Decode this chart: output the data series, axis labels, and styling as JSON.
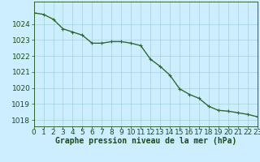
{
  "x": [
    0,
    1,
    2,
    3,
    4,
    5,
    6,
    7,
    8,
    9,
    10,
    11,
    12,
    13,
    14,
    15,
    16,
    17,
    18,
    19,
    20,
    21,
    22,
    23
  ],
  "y": [
    1024.7,
    1024.6,
    1024.3,
    1023.7,
    1023.5,
    1023.3,
    1022.8,
    1022.8,
    1022.9,
    1022.9,
    1022.8,
    1022.65,
    1021.8,
    1021.35,
    1020.8,
    1019.95,
    1019.6,
    1019.35,
    1018.85,
    1018.6,
    1018.55,
    1018.45,
    1018.35,
    1018.2
  ],
  "line_color": "#2d6a2d",
  "marker": "+",
  "marker_size": 3,
  "bg_color": "#cceeff",
  "grid_color": "#99cccc",
  "xlabel": "Graphe pression niveau de la mer (hPa)",
  "xlabel_fontsize": 7,
  "ylabel_ticks": [
    1018,
    1019,
    1020,
    1021,
    1022,
    1023,
    1024
  ],
  "ylim": [
    1017.6,
    1025.4
  ],
  "xlim": [
    0,
    23
  ],
  "tick_fontsize": 6.5,
  "title_color": "#1a4d1a",
  "linewidth": 1.0
}
